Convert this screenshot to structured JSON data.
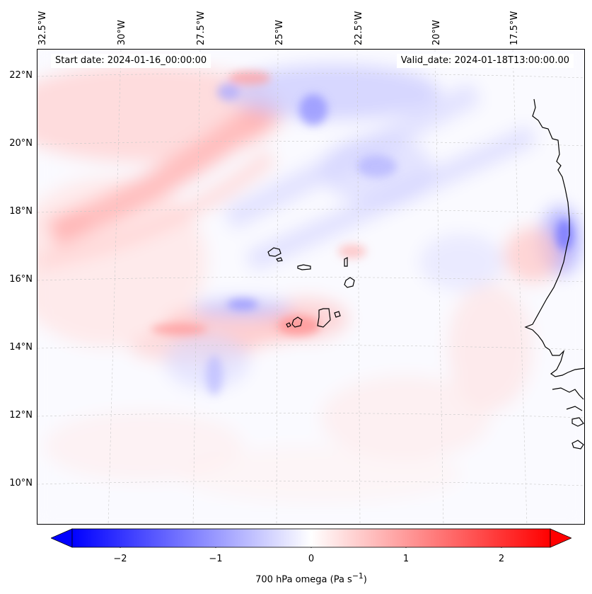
{
  "map": {
    "start_label": "Start date: 2024-01-16_00:00:00",
    "valid_label": "Valid_date: 2024-01-18T13:00:00.00",
    "longitude_ticks": [
      "32.5°W",
      "30°W",
      "27.5°W",
      "25°W",
      "22.5°W",
      "20°W",
      "17.5°W"
    ],
    "latitude_ticks": [
      "22°N",
      "20°N",
      "18°N",
      "16°N",
      "14°N",
      "12°N",
      "10°N"
    ],
    "extent": {
      "lon_min": -32.8,
      "lon_max": -15.3,
      "lat_min": 8.9,
      "lat_max": 22.8
    },
    "projection": "Lambert conformal",
    "gridlines": true,
    "coastlines": true,
    "field": "700 hPa omega",
    "palette": [
      "#0000ff",
      "#ffffff",
      "#ff0000"
    ],
    "colorbar": {
      "label": "700 hPa omega (Pa s",
      "label_exponent": "−1",
      "label_close": ")",
      "ticks": [
        "−2",
        "−1",
        "0",
        "1",
        "2"
      ],
      "range": [
        -2.6,
        2.6
      ],
      "extend": "both"
    }
  }
}
